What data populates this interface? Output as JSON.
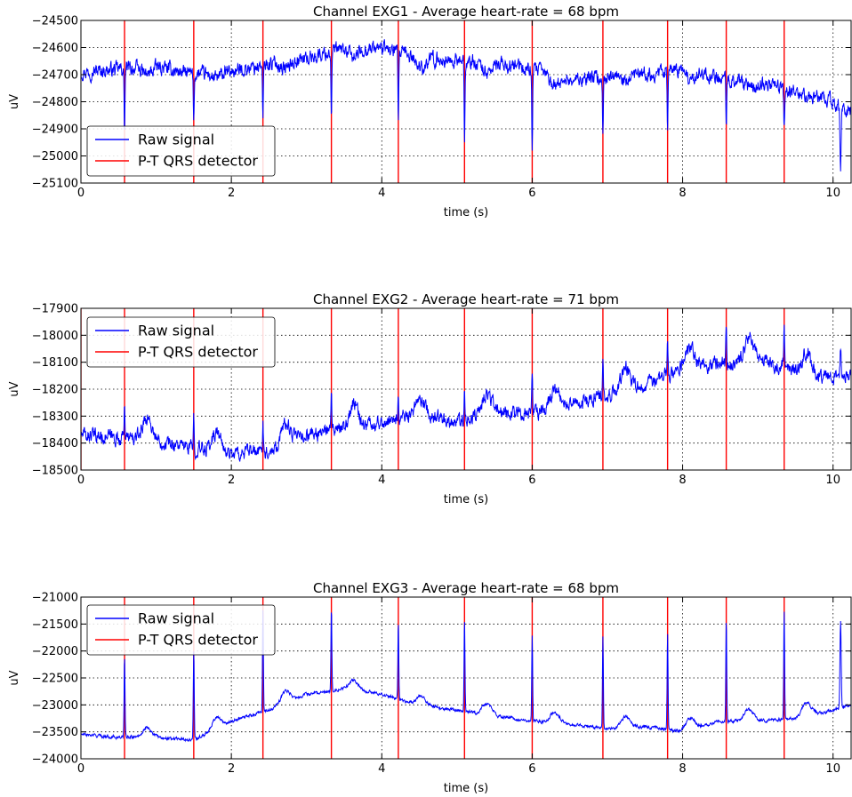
{
  "chart_data": [
    {
      "type": "line",
      "title": "Channel EXG1 - Average heart-rate = 68 bpm",
      "xlabel": "time (s)",
      "ylabel": "uV",
      "xlim": [
        0,
        10.24
      ],
      "ylim": [
        -25100,
        -24500
      ],
      "xticks": [
        0,
        2,
        4,
        6,
        8,
        10
      ],
      "yticks": [
        -24500,
        -24600,
        -24700,
        -24800,
        -24900,
        -25000,
        -25100
      ],
      "grid": true,
      "legend_position": "lower-left",
      "legend": [
        "Raw signal",
        "P-T QRS detector"
      ],
      "series": [
        {
          "name": "Raw signal",
          "color": "#0000ff",
          "baseline": [
            [
              0,
              -24690
            ],
            [
              0.5,
              -24680
            ],
            [
              1.0,
              -24670
            ],
            [
              1.5,
              -24700
            ],
            [
              2.0,
              -24690
            ],
            [
              2.5,
              -24660
            ],
            [
              3.0,
              -24640
            ],
            [
              3.4,
              -24610
            ],
            [
              4.0,
              -24600
            ],
            [
              4.5,
              -24640
            ],
            [
              5.0,
              -24650
            ],
            [
              5.5,
              -24660
            ],
            [
              6.0,
              -24680
            ],
            [
              6.5,
              -24720
            ],
            [
              7.0,
              -24710
            ],
            [
              7.5,
              -24700
            ],
            [
              8.0,
              -24680
            ],
            [
              8.5,
              -24710
            ],
            [
              9.0,
              -24730
            ],
            [
              9.5,
              -24760
            ],
            [
              10.0,
              -24800
            ],
            [
              10.24,
              -24840
            ]
          ],
          "beat_deflection": [
            -230,
            -170,
            -210,
            -230,
            -260,
            -300,
            -320,
            -220,
            -240,
            -200,
            -150,
            -200
          ],
          "extra_events": [
            {
              "x": 10.1,
              "y": -25050
            }
          ]
        },
        {
          "name": "P-T QRS detector",
          "color": "#ff0000",
          "x": [
            0.58,
            1.5,
            2.42,
            3.33,
            4.22,
            5.1,
            6.0,
            6.94,
            7.8,
            8.58,
            9.35
          ]
        }
      ]
    },
    {
      "type": "line",
      "title": "Channel EXG2 - Average heart-rate = 71 bpm",
      "xlabel": "time (s)",
      "ylabel": "uV",
      "xlim": [
        0,
        10.24
      ],
      "ylim": [
        -18500,
        -17900
      ],
      "xticks": [
        0,
        2,
        4,
        6,
        8,
        10
      ],
      "yticks": [
        -17900,
        -18000,
        -18100,
        -18200,
        -18300,
        -18400,
        -18500
      ],
      "grid": true,
      "legend_position": "upper-left",
      "legend": [
        "Raw signal",
        "P-T QRS detector"
      ],
      "series": [
        {
          "name": "Raw signal",
          "color": "#0000ff",
          "baseline": [
            [
              0,
              -18370
            ],
            [
              0.5,
              -18380
            ],
            [
              1.0,
              -18390
            ],
            [
              1.5,
              -18420
            ],
            [
              2.0,
              -18440
            ],
            [
              2.5,
              -18430
            ],
            [
              3.0,
              -18370
            ],
            [
              3.5,
              -18350
            ],
            [
              4.0,
              -18320
            ],
            [
              4.5,
              -18300
            ],
            [
              5.0,
              -18320
            ],
            [
              5.5,
              -18280
            ],
            [
              6.0,
              -18290
            ],
            [
              6.5,
              -18260
            ],
            [
              7.0,
              -18220
            ],
            [
              7.5,
              -18190
            ],
            [
              8.0,
              -18120
            ],
            [
              8.5,
              -18110
            ],
            [
              9.0,
              -18090
            ],
            [
              9.5,
              -18130
            ],
            [
              10.0,
              -18160
            ],
            [
              10.24,
              -18140
            ]
          ],
          "beat_deflection": [
            140,
            120,
            130,
            140,
            110,
            120,
            130,
            150,
            140,
            150,
            130,
            130
          ],
          "extra_events": [
            {
              "x": 10.1,
              "y": -18060
            }
          ]
        },
        {
          "name": "P-T QRS detector",
          "color": "#ff0000",
          "x": [
            0.0,
            0.58,
            1.5,
            2.42,
            3.33,
            4.22,
            5.1,
            6.0,
            6.94,
            7.8,
            8.58,
            9.35
          ]
        }
      ]
    },
    {
      "type": "line",
      "title": "Channel EXG3 - Average heart-rate = 68 bpm",
      "xlabel": "time (s)",
      "ylabel": "uV",
      "xlim": [
        0,
        10.24
      ],
      "ylim": [
        -24000,
        -21000
      ],
      "xticks": [
        0,
        2,
        4,
        6,
        8,
        10
      ],
      "yticks": [
        -21000,
        -21500,
        -22000,
        -22500,
        -23000,
        -23500,
        -24000
      ],
      "grid": true,
      "legend_position": "upper-left",
      "legend": [
        "Raw signal",
        "P-T QRS detector"
      ],
      "series": [
        {
          "name": "Raw signal",
          "color": "#0000ff",
          "baseline": [
            [
              0,
              -23550
            ],
            [
              0.5,
              -23600
            ],
            [
              1.0,
              -23600
            ],
            [
              1.5,
              -23650
            ],
            [
              2.0,
              -23300
            ],
            [
              2.5,
              -23100
            ],
            [
              3.0,
              -22800
            ],
            [
              3.5,
              -22700
            ],
            [
              4.0,
              -22800
            ],
            [
              4.5,
              -23000
            ],
            [
              5.0,
              -23100
            ],
            [
              5.5,
              -23200
            ],
            [
              6.0,
              -23300
            ],
            [
              6.5,
              -23350
            ],
            [
              7.0,
              -23450
            ],
            [
              7.5,
              -23400
            ],
            [
              8.0,
              -23500
            ],
            [
              8.5,
              -23300
            ],
            [
              9.0,
              -23300
            ],
            [
              9.5,
              -23250
            ],
            [
              10.0,
              -23100
            ],
            [
              10.24,
              -23000
            ]
          ],
          "beat_deflection": [
            1500,
            1700,
            1900,
            1500,
            1400,
            1700,
            1600,
            1700,
            1800,
            1900,
            2000,
            1700
          ],
          "extra_events": [
            {
              "x": 10.1,
              "y": -21450
            }
          ]
        },
        {
          "name": "P-T QRS detector",
          "color": "#ff0000",
          "x": [
            0.58,
            1.5,
            2.42,
            3.33,
            4.22,
            5.1,
            6.0,
            6.94,
            7.8,
            8.58,
            9.35
          ]
        }
      ]
    }
  ]
}
